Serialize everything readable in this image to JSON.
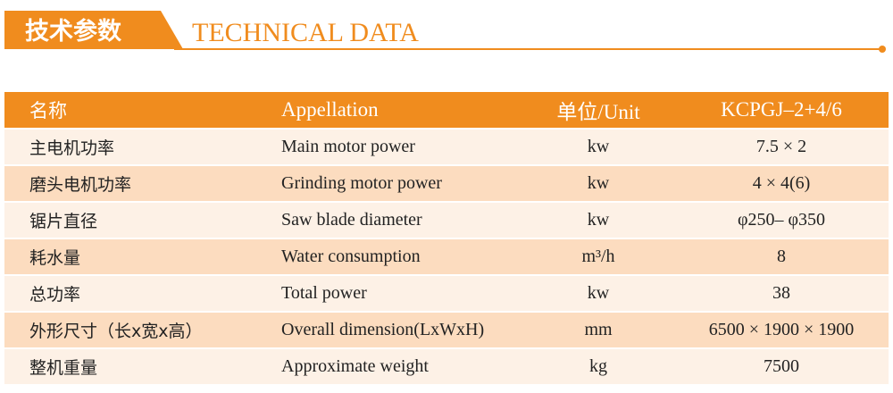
{
  "header": {
    "title_cn": "技术参数",
    "title_en": "TECHNICAL DATA"
  },
  "table": {
    "columns": [
      "名称",
      "Appellation",
      "单位/Unit",
      "KCPGJ–2+4/6"
    ],
    "rows": [
      [
        "主电机功率",
        "Main motor power",
        "kw",
        "7.5 × 2"
      ],
      [
        "磨头电机功率",
        "Grinding motor power",
        "kw",
        "4 × 4(6)"
      ],
      [
        "锯片直径",
        "Saw blade diameter",
        "kw",
        "φ250– φ350"
      ],
      [
        "耗水量",
        "Water consumption",
        "m³/h",
        "8"
      ],
      [
        "总功率",
        "Total power",
        "kw",
        "38"
      ],
      [
        "外形尺寸（长x宽x高）",
        "Overall dimension(LxWxH)",
        "mm",
        "6500 × 1900 × 1900"
      ],
      [
        "整机重量",
        "Approximate weight",
        "kg",
        "7500"
      ]
    ]
  }
}
